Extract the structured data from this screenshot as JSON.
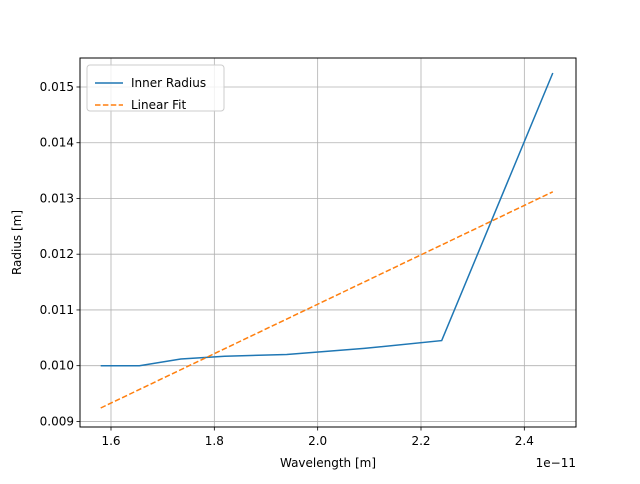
{
  "chart_data": {
    "type": "line",
    "title": "",
    "xlabel": "Wavelength [m]",
    "ylabel": "Radius [m]",
    "x_offset_label": "1e−11",
    "xlim": [
      1.54,
      2.5
    ],
    "ylim": [
      0.0089,
      0.01552
    ],
    "xticks": [
      1.6,
      1.8,
      2.0,
      2.2,
      2.4
    ],
    "xtick_labels": [
      "1.6",
      "1.8",
      "2.0",
      "2.2",
      "2.4"
    ],
    "yticks": [
      0.009,
      0.01,
      0.011,
      0.012,
      0.013,
      0.014,
      0.015
    ],
    "ytick_labels": [
      "0.009",
      "0.010",
      "0.011",
      "0.012",
      "0.013",
      "0.014",
      "0.015"
    ],
    "grid": true,
    "legend_position": "top-left",
    "series": [
      {
        "name": "Inner Radius",
        "style": "solid",
        "color": "#1f77b4",
        "x": [
          1.58,
          1.655,
          1.735,
          1.82,
          1.94,
          2.09,
          2.24,
          2.455
        ],
        "y": [
          0.01,
          0.01,
          0.01012,
          0.01017,
          0.0102,
          0.01031,
          0.01045,
          0.01525
        ]
      },
      {
        "name": "Linear Fit",
        "style": "dashed",
        "color": "#ff7f0e",
        "x": [
          1.58,
          2.455
        ],
        "y": [
          0.00924,
          0.01312
        ]
      }
    ]
  }
}
